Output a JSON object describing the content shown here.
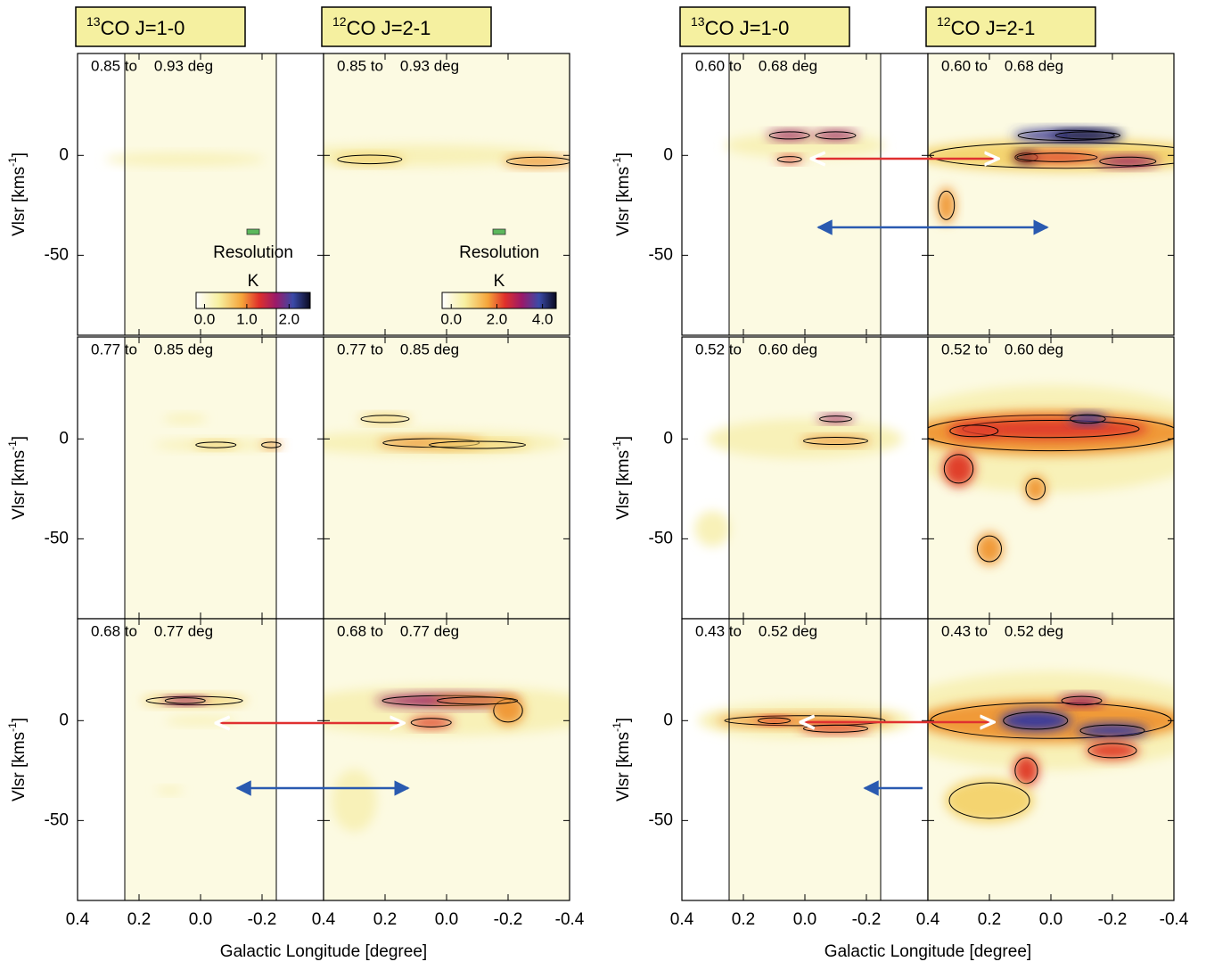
{
  "headers": [
    {
      "iso": "13",
      "rest": "CO J=1-0"
    },
    {
      "iso": "12",
      "rest": "CO J=2-1"
    }
  ],
  "y_label": {
    "text": "Vlsr [kms",
    "sup": "-1",
    "end": "]"
  },
  "x_label": "Galactic Longitude [degree]",
  "xlim": [
    0.4,
    -0.4
  ],
  "xticks": [
    0.4,
    0.2,
    {
      "value": 0,
      "label": "0.0"
    },
    -0.2,
    -0.4
  ],
  "ylim": [
    -90,
    51
  ],
  "yticks": [
    0,
    -50
  ],
  "ranges": [
    [
      "0.85 to    0.93 deg",
      "0.77 to    0.85 deg",
      "0.68 to    0.77 deg"
    ],
    [
      "0.60 to    0.68 deg",
      "0.52 to    0.60 deg",
      "0.43 to    0.52 deg"
    ]
  ],
  "resolution": "Resolution",
  "colorbars": [
    {
      "title": "K",
      "lim": [
        -0.2,
        2.5
      ],
      "ticks": [
        {
          "value": 0,
          "label": "0.0"
        },
        {
          "value": 1,
          "label": "1.0"
        },
        {
          "value": 2,
          "label": "2.0"
        }
      ]
    },
    {
      "title": "K",
      "lim": [
        -0.4,
        4.6
      ],
      "ticks": [
        {
          "value": 0,
          "label": "0.0"
        },
        {
          "value": 2,
          "label": "2.0"
        },
        {
          "value": 4,
          "label": "4.0"
        }
      ]
    }
  ]
}
